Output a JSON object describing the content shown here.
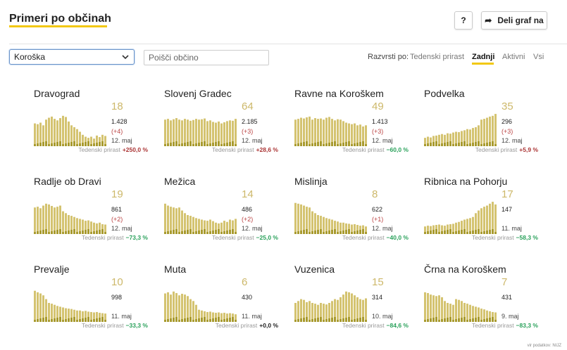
{
  "header": {
    "title": "Primeri po občinah",
    "help_label": "?",
    "share_label": "Deli graf na"
  },
  "filters": {
    "region_value": "Koroška",
    "search_placeholder": "Poišči občino",
    "sort_label": "Razvrsti po:",
    "sort_options": [
      "Tedenski prirast",
      "Zadnji",
      "Aktivni",
      "Vsi"
    ],
    "sort_active": "Zadnji"
  },
  "colors": {
    "bar": "#d4c370",
    "bar_dark": "#a89a2e",
    "accent": "#f2c811",
    "positive": "#a33",
    "negative": "#2aa15b"
  },
  "growth_label": "Tedenski prirast",
  "cards": [
    {
      "name": "Dravograd",
      "latest": "18",
      "total": "1.428",
      "delta": "(+4)",
      "date": "12. maj",
      "growth": "+250,0 %",
      "trend": "pos",
      "bars": [
        0.6,
        0.58,
        0.62,
        0.55,
        0.7,
        0.75,
        0.78,
        0.72,
        0.68,
        0.74,
        0.8,
        0.77,
        0.65,
        0.55,
        0.5,
        0.45,
        0.38,
        0.3,
        0.25,
        0.22,
        0.25,
        0.2,
        0.28,
        0.24,
        0.3,
        0.27
      ]
    },
    {
      "name": "Slovenj Gradec",
      "latest": "64",
      "total": "2.185",
      "delta": "(+3)",
      "date": "12. maj",
      "growth": "+28,6 %",
      "trend": "pos",
      "bars": [
        0.7,
        0.72,
        0.68,
        0.71,
        0.74,
        0.7,
        0.68,
        0.72,
        0.7,
        0.67,
        0.69,
        0.72,
        0.7,
        0.71,
        0.73,
        0.66,
        0.68,
        0.64,
        0.62,
        0.65,
        0.6,
        0.63,
        0.66,
        0.68,
        0.67,
        0.72
      ]
    },
    {
      "name": "Ravne na Koroškem",
      "latest": "49",
      "total": "1.413",
      "delta": "(+3)",
      "date": "12. maj",
      "growth": "−60,0 %",
      "trend": "neg",
      "bars": [
        0.7,
        0.72,
        0.75,
        0.73,
        0.76,
        0.78,
        0.7,
        0.74,
        0.72,
        0.73,
        0.7,
        0.75,
        0.77,
        0.72,
        0.68,
        0.71,
        0.7,
        0.66,
        0.62,
        0.6,
        0.58,
        0.6,
        0.55,
        0.57,
        0.52,
        0.55
      ]
    },
    {
      "name": "Podvelka",
      "latest": "35",
      "total": "296",
      "delta": "(+3)",
      "date": "12. maj",
      "growth": "+5,9 %",
      "trend": "pos",
      "bars": [
        0.22,
        0.25,
        0.23,
        0.27,
        0.28,
        0.3,
        0.32,
        0.3,
        0.34,
        0.33,
        0.36,
        0.38,
        0.37,
        0.4,
        0.42,
        0.45,
        0.44,
        0.48,
        0.5,
        0.55,
        0.7,
        0.72,
        0.75,
        0.78,
        0.8,
        0.85
      ]
    },
    {
      "name": "Radlje ob Dravi",
      "latest": "19",
      "total": "861",
      "delta": "(+2)",
      "date": "12. maj",
      "growth": "−73,3 %",
      "trend": "neg",
      "bars": [
        0.7,
        0.72,
        0.68,
        0.75,
        0.8,
        0.78,
        0.74,
        0.7,
        0.72,
        0.75,
        0.6,
        0.55,
        0.5,
        0.48,
        0.45,
        0.42,
        0.4,
        0.38,
        0.35,
        0.36,
        0.33,
        0.3,
        0.28,
        0.3,
        0.26,
        0.25
      ]
    },
    {
      "name": "Mežica",
      "latest": "14",
      "total": "486",
      "delta": "(+2)",
      "date": "12. maj",
      "growth": "−25,0 %",
      "trend": "neg",
      "bars": [
        0.8,
        0.75,
        0.72,
        0.7,
        0.68,
        0.7,
        0.62,
        0.55,
        0.5,
        0.48,
        0.45,
        0.42,
        0.4,
        0.38,
        0.36,
        0.35,
        0.38,
        0.34,
        0.3,
        0.28,
        0.3,
        0.35,
        0.32,
        0.38,
        0.36,
        0.4
      ]
    },
    {
      "name": "Mislinja",
      "latest": "8",
      "total": "622",
      "delta": "(+1)",
      "date": "12. maj",
      "growth": "−40,0 %",
      "trend": "neg",
      "bars": [
        0.82,
        0.8,
        0.78,
        0.75,
        0.72,
        0.7,
        0.6,
        0.55,
        0.5,
        0.48,
        0.45,
        0.42,
        0.4,
        0.38,
        0.35,
        0.33,
        0.3,
        0.3,
        0.28,
        0.27,
        0.25,
        0.26,
        0.24,
        0.22,
        0.23,
        0.2
      ]
    },
    {
      "name": "Ribnica na Pohorju",
      "latest": "17",
      "total": "147",
      "delta": "",
      "date": "11. maj",
      "growth": "−58,3 %",
      "trend": "neg",
      "bars": [
        0.2,
        0.22,
        0.21,
        0.23,
        0.24,
        0.25,
        0.23,
        0.22,
        0.25,
        0.26,
        0.27,
        0.3,
        0.32,
        0.35,
        0.38,
        0.4,
        0.42,
        0.45,
        0.55,
        0.62,
        0.68,
        0.72,
        0.75,
        0.8,
        0.85,
        0.78
      ]
    },
    {
      "name": "Prevalje",
      "latest": "10",
      "total": "998",
      "delta": "",
      "date": "11. maj",
      "growth": "−33,3 %",
      "trend": "neg",
      "bars": [
        0.82,
        0.78,
        0.75,
        0.7,
        0.6,
        0.5,
        0.48,
        0.45,
        0.42,
        0.4,
        0.38,
        0.36,
        0.35,
        0.34,
        0.32,
        0.3,
        0.3,
        0.28,
        0.29,
        0.27,
        0.26,
        0.25,
        0.26,
        0.24,
        0.23,
        0.22
      ]
    },
    {
      "name": "Muta",
      "latest": "6",
      "total": "430",
      "delta": "",
      "date": "11. maj",
      "growth": "+0,0 %",
      "trend": "zero",
      "bars": [
        0.75,
        0.78,
        0.72,
        0.8,
        0.76,
        0.7,
        0.74,
        0.72,
        0.68,
        0.6,
        0.55,
        0.45,
        0.32,
        0.3,
        0.28,
        0.26,
        0.27,
        0.25,
        0.24,
        0.25,
        0.23,
        0.24,
        0.22,
        0.23,
        0.22,
        0.2
      ]
    },
    {
      "name": "Vuzenica",
      "latest": "15",
      "total": "314",
      "delta": "",
      "date": "10. maj",
      "growth": "−84,6 %",
      "trend": "neg",
      "bars": [
        0.5,
        0.55,
        0.6,
        0.58,
        0.52,
        0.55,
        0.5,
        0.48,
        0.45,
        0.5,
        0.48,
        0.46,
        0.5,
        0.55,
        0.6,
        0.58,
        0.65,
        0.72,
        0.8,
        0.78,
        0.75,
        0.7,
        0.65,
        0.6,
        0.58,
        0.62
      ]
    },
    {
      "name": "Črna na Koroškem",
      "latest": "7",
      "total": "431",
      "delta": "",
      "date": "9. maj",
      "growth": "−83,3 %",
      "trend": "neg",
      "bars": [
        0.78,
        0.76,
        0.72,
        0.7,
        0.68,
        0.7,
        0.65,
        0.55,
        0.5,
        0.48,
        0.45,
        0.6,
        0.58,
        0.55,
        0.5,
        0.48,
        0.45,
        0.42,
        0.4,
        0.38,
        0.35,
        0.33,
        0.3,
        0.28,
        0.26,
        0.25
      ]
    }
  ],
  "footer": "vir podatkov: NIJZ"
}
